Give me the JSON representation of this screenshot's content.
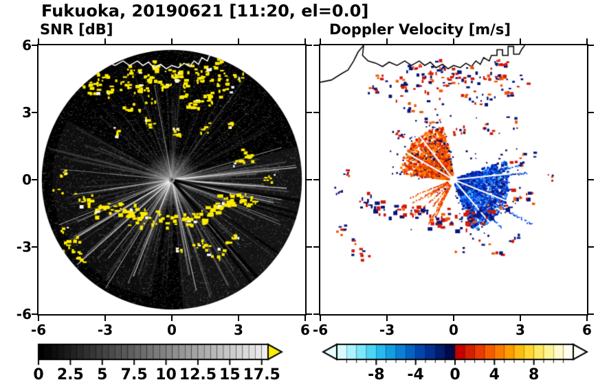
{
  "title": "Fukuoka, 20190621 [11:20, el=0.0]",
  "panels": {
    "left_label": "SNR [dB]",
    "right_label": "Doppler Velocity [m/s]"
  },
  "axes": {
    "x_tick_values": [
      -6,
      -3,
      0,
      3,
      6
    ],
    "x_tick_labels": [
      "-6",
      "-3",
      "0",
      "3",
      "6"
    ],
    "y_tick_values": [
      6,
      3,
      0,
      -3,
      -6
    ],
    "y_tick_labels": [
      "6",
      "3",
      "0",
      "-3",
      "-6"
    ]
  },
  "colorbars": {
    "snr": {
      "tick_values": [
        0,
        2.5,
        5,
        7.5,
        10,
        12.5,
        15,
        17.5
      ],
      "tick_labels": [
        "0",
        "2.5",
        "5",
        "7.5",
        "10",
        "12.5",
        "15",
        "17.5"
      ],
      "min": 0,
      "max": 18,
      "over_color": "#ffec00"
    },
    "vel": {
      "tick_values": [
        -8,
        -4,
        0,
        4,
        8
      ],
      "tick_labels": [
        "-8",
        "-4",
        "0",
        "4",
        "8"
      ],
      "min": -12,
      "max": 12,
      "under_color": "#eaffff",
      "over_color": "#ffffff"
    }
  },
  "chart_data": {
    "type": "heatmap",
    "subtype": "dual_radar_ppi",
    "site": "Fukuoka",
    "date": "20190621",
    "time": "11:20",
    "elevation_deg": 0.0,
    "axis": {
      "xlim": [
        -6,
        6
      ],
      "ylim": [
        -6,
        6
      ],
      "xticks": [
        -6,
        -3,
        0,
        3,
        6
      ],
      "yticks": [
        -6,
        -3,
        0,
        3,
        6
      ]
    },
    "panels": [
      {
        "variable": "SNR",
        "units": "dB",
        "cmin": 0,
        "cmax": 18,
        "cticks": [
          0,
          2.5,
          5,
          7.5,
          10,
          12.5,
          15,
          17.5
        ],
        "colormap": "grayscale",
        "over_color": "#ffec00",
        "background": "#000000",
        "scan_radius": 5.85
      },
      {
        "variable": "Doppler Velocity",
        "units": "m/s",
        "cmin": -12,
        "cmax": 12,
        "cticks": [
          -8,
          -4,
          0,
          4,
          8
        ],
        "background": "#ffffff",
        "under_color": "#eaffff",
        "over_color": "#ffffff",
        "cell_colors": [
          "#d8fbff",
          "#aaf2fc",
          "#7ce6fa",
          "#4cd4f6",
          "#28baee",
          "#149ee2",
          "#0a80d4",
          "#0462c4",
          "#0246ac",
          "#013090",
          "#011c70",
          "#010a48",
          "#c40000",
          "#d71e00",
          "#e83c00",
          "#f55c00",
          "#fc7c00",
          "#ff9c00",
          "#ffbc10",
          "#ffd830",
          "#ffe960",
          "#fff494",
          "#fffac8",
          "#fffdee"
        ]
      }
    ],
    "coastline": [
      [
        -6,
        4.35
      ],
      [
        -5.5,
        4.45
      ],
      [
        -5.1,
        4.7
      ],
      [
        -4.75,
        4.9
      ],
      [
        -4.5,
        5.3
      ],
      [
        -4.3,
        5.7
      ],
      [
        -4.05,
        6.0
      ],
      [
        -4.1,
        5.55
      ],
      [
        -3.85,
        5.3
      ],
      [
        -3.5,
        5.2
      ],
      [
        -3.2,
        5.05
      ],
      [
        -2.9,
        5.25
      ],
      [
        -2.55,
        5.1
      ],
      [
        -2.2,
        5.3
      ],
      [
        -1.9,
        5.1
      ],
      [
        -1.55,
        5.3
      ],
      [
        -1.3,
        5.1
      ],
      [
        -1.05,
        5.25
      ],
      [
        -0.8,
        5.0
      ],
      [
        -0.5,
        5.15
      ],
      [
        -0.25,
        4.95
      ],
      [
        0.0,
        5.1
      ],
      [
        0.3,
        5.0
      ],
      [
        0.55,
        5.2
      ],
      [
        0.8,
        5.05
      ],
      [
        1.0,
        5.3
      ],
      [
        1.2,
        5.15
      ],
      [
        1.35,
        5.45
      ],
      [
        1.6,
        5.3
      ],
      [
        1.7,
        5.55
      ],
      [
        1.95,
        5.55
      ],
      [
        1.95,
        5.8
      ],
      [
        2.2,
        5.8
      ],
      [
        2.2,
        5.55
      ],
      [
        2.45,
        5.55
      ],
      [
        2.45,
        5.95
      ],
      [
        2.7,
        5.95
      ],
      [
        2.7,
        5.6
      ],
      [
        2.95,
        5.6
      ],
      [
        3.05,
        5.8
      ],
      [
        3.2,
        6.0
      ]
    ],
    "echo_clusters": [
      [
        -3.7,
        4.1,
        1
      ],
      [
        -3.2,
        4.5,
        1
      ],
      [
        -2.8,
        3.9,
        1
      ],
      [
        -2.3,
        4.3,
        1
      ],
      [
        -1.9,
        4.9,
        1
      ],
      [
        -1.5,
        4.15,
        1
      ],
      [
        -1.1,
        4.6,
        1
      ],
      [
        -0.7,
        5.05,
        1
      ],
      [
        -0.4,
        4.3,
        1
      ],
      [
        0,
        4.8,
        1
      ],
      [
        0.35,
        4.45,
        1
      ],
      [
        0.7,
        4.9,
        1
      ],
      [
        1.1,
        4.5,
        1
      ],
      [
        1.5,
        4.8,
        1
      ],
      [
        0.55,
        3.9,
        1
      ],
      [
        1,
        3.45,
        1
      ],
      [
        1.6,
        3.65,
        1
      ],
      [
        -0.9,
        3.55,
        1
      ],
      [
        -1.9,
        3.2,
        1
      ],
      [
        2.1,
        4.55,
        1
      ],
      [
        2.5,
        3.95,
        1
      ],
      [
        2,
        5.2,
        1
      ],
      [
        2.9,
        4.6,
        1
      ],
      [
        -1,
        2.6,
        0.8
      ],
      [
        0.2,
        2.25,
        0.8
      ],
      [
        1.45,
        2.3,
        0.8
      ],
      [
        2.6,
        2.6,
        0.9
      ],
      [
        -2.5,
        2.2,
        0.7
      ],
      [
        2.95,
        0.9,
        0.9
      ],
      [
        3.35,
        1.15,
        0.8
      ],
      [
        4.3,
        0.15,
        0.6
      ],
      [
        -3.9,
        -0.85,
        1.4
      ],
      [
        -3.35,
        -1.15,
        1.4
      ],
      [
        -2.75,
        -1.45,
        1.3
      ],
      [
        -2.15,
        -1.3,
        1.3
      ],
      [
        -1.55,
        -1.6,
        1.4
      ],
      [
        -0.95,
        -1.8,
        1.3
      ],
      [
        -0.3,
        -1.7,
        1.3
      ],
      [
        0.4,
        -1.8,
        1.4
      ],
      [
        1.05,
        -1.6,
        1.3
      ],
      [
        1.65,
        -1.35,
        1.3
      ],
      [
        2.25,
        -1.1,
        1.4
      ],
      [
        2.85,
        -0.8,
        1.3
      ],
      [
        3.4,
        -0.9,
        1
      ],
      [
        -4.6,
        -2.85,
        1.1
      ],
      [
        -4.15,
        -3.3,
        1
      ],
      [
        -5,
        -2.2,
        0.7
      ],
      [
        -5.15,
        -0.5,
        0.6
      ],
      [
        -4.9,
        0.3,
        0.6
      ],
      [
        1.35,
        -2.9,
        0.9
      ],
      [
        2,
        -3.25,
        1
      ],
      [
        2.7,
        -2.6,
        0.8
      ],
      [
        0.3,
        -3.1,
        0.6
      ]
    ],
    "snr_features": {
      "bright_sector_az": [
        -85,
        15
      ],
      "secondary_sector_az": [
        150,
        260
      ],
      "spokes": 170,
      "bright_rays": 22,
      "dark_rays": 7,
      "noise_dots": 9000,
      "clutter_color": "#ffec00"
    },
    "velocity_features": {
      "toward_wedge": {
        "az": [
          100,
          175
        ],
        "rmax": 2.45,
        "n": 1500,
        "colors": [
          "#d01800",
          "#e03000",
          "#f05000",
          "#ff6a00",
          "#ff8200"
        ]
      },
      "toward_streaks": {
        "az": [
          196,
          244
        ],
        "n": 10,
        "rmax": 2.6
      },
      "away_wedge": {
        "az": [
          -70,
          20
        ],
        "rmax": 2.5,
        "n": 1800,
        "colors": [
          "#0030d0",
          "#0048e8",
          "#1868f8",
          "#0028a8",
          "#3090ff",
          "#0a1888"
        ]
      },
      "away_streak_angles": [
        -10,
        -3,
        5,
        -30,
        -45,
        12
      ],
      "navy": "#0a1060",
      "cyan": "#30b8f0",
      "white_ray_angles": [
        -50,
        -22,
        6,
        128,
        150
      ]
    }
  }
}
